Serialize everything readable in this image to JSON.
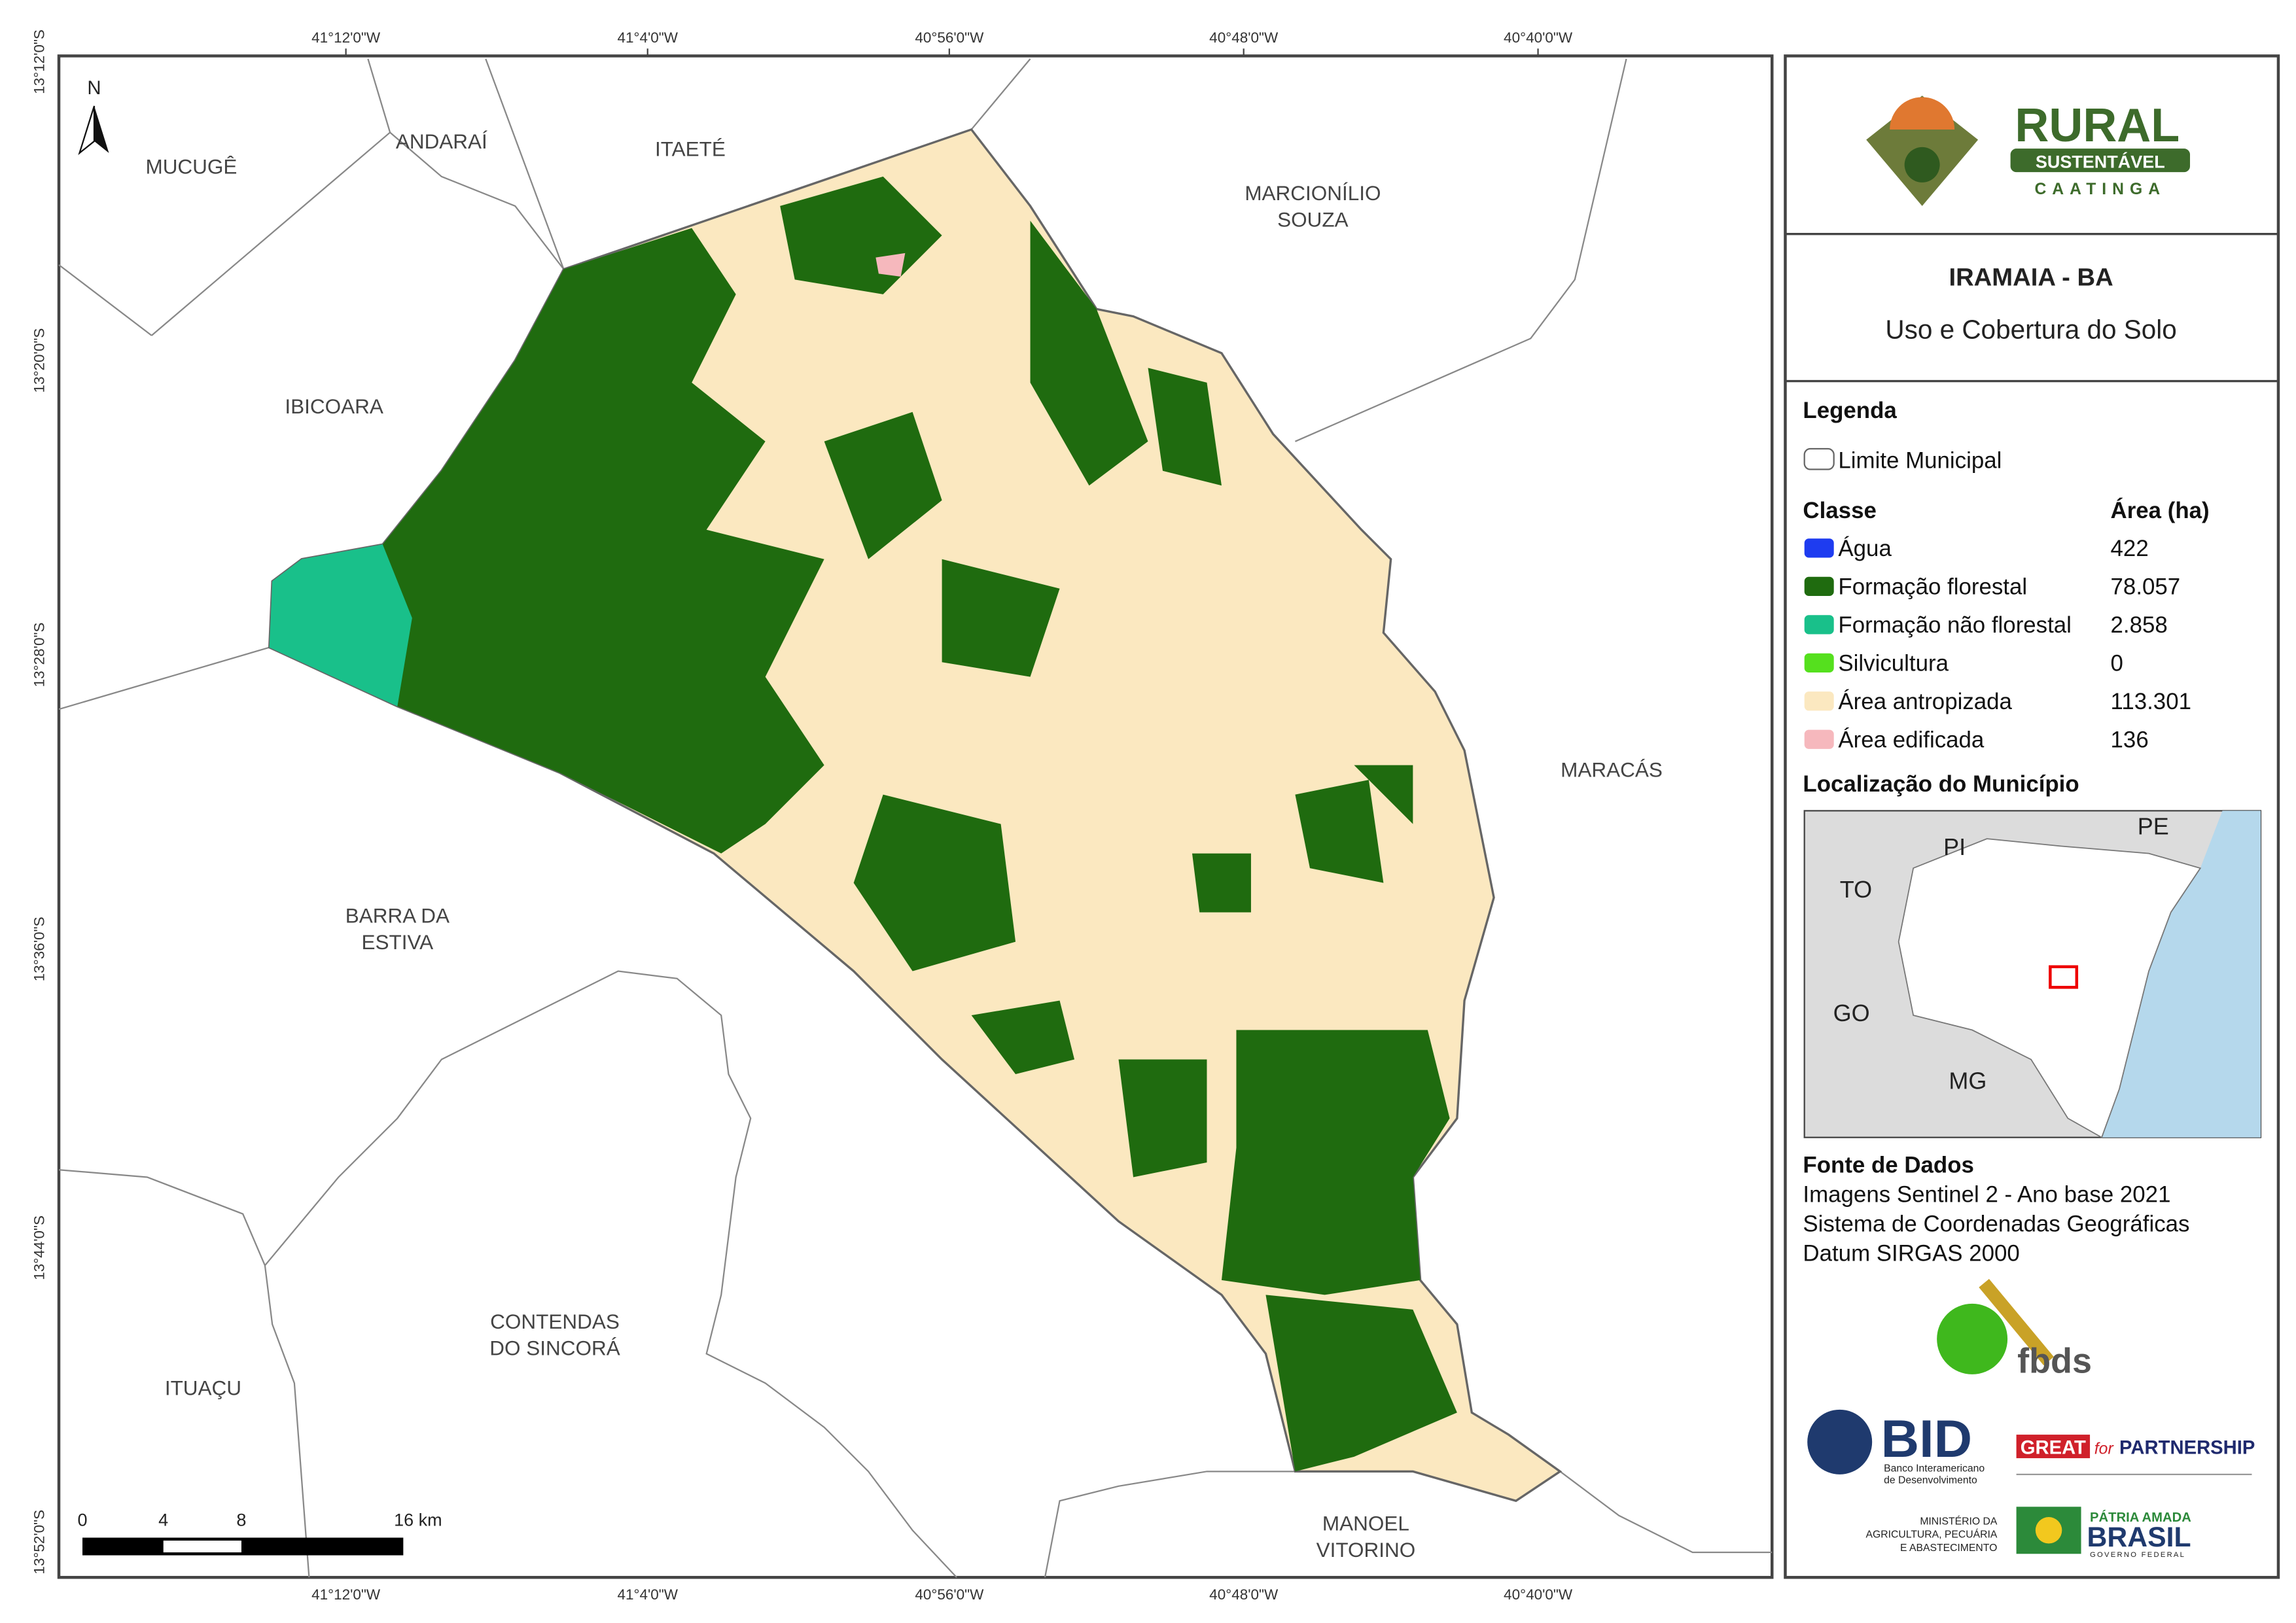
{
  "map": {
    "coordinates": {
      "longitudes": [
        "41°12'0\"W",
        "41°4'0\"W",
        "40°56'0\"W",
        "40°48'0\"W",
        "40°40'0\"W"
      ],
      "latitudes": [
        "13°12'0\"S",
        "13°20'0\"S",
        "13°28'0\"S",
        "13°36'0\"S",
        "13°44'0\"S",
        "13°52'0\"S"
      ]
    },
    "north": "N",
    "places": [
      {
        "lines": [
          "MUCUGÊ"
        ]
      },
      {
        "lines": [
          "ANDARAÍ"
        ]
      },
      {
        "lines": [
          "ITAETÉ"
        ]
      },
      {
        "lines": [
          "MARCIONÍLIO",
          "SOUZA"
        ]
      },
      {
        "lines": [
          "IBICOARA"
        ]
      },
      {
        "lines": [
          "MARACÁS"
        ]
      },
      {
        "lines": [
          "BARRA DA",
          "ESTIVA"
        ]
      },
      {
        "lines": [
          "CONTENDAS",
          "DO SINCORÁ"
        ]
      },
      {
        "lines": [
          "ITUAÇU"
        ]
      },
      {
        "lines": [
          "MANOEL",
          "VITORINO"
        ]
      }
    ],
    "scale": [
      "0",
      "4",
      "8",
      "16 km"
    ]
  },
  "header": {
    "logo": {
      "title": "RURAL",
      "subtitle": "SUSTENTÁVEL",
      "tagline": "CAATINGA"
    },
    "title": "IRAMAIA - BA",
    "subtitle": "Uso e Cobertura do Solo"
  },
  "legend": {
    "title": "Legenda",
    "boundary": "Limite Municipal",
    "class_header": "Classe",
    "area_header": "Área (ha)",
    "classes": [
      {
        "name": "Água",
        "color": "#1e3cf0",
        "area": "422"
      },
      {
        "name": "Formação florestal",
        "color": "#1f6b0f",
        "area": "78.057"
      },
      {
        "name": "Formação não florestal",
        "color": "#19c08a",
        "area": "2.858"
      },
      {
        "name": "Silvicultura",
        "color": "#55e01e",
        "area": "0"
      },
      {
        "name": "Área antropizada",
        "color": "#fbe8c0",
        "area": "113.301"
      },
      {
        "name": "Área edificada",
        "color": "#f6b8bd",
        "area": "136"
      }
    ]
  },
  "location": {
    "title": "Localização do Município",
    "states": [
      "PI",
      "PE",
      "TO",
      "GO",
      "MG"
    ]
  },
  "sources": {
    "title": "Fonte de Dados",
    "lines": [
      "Imagens Sentinel 2 - Ano base 2021",
      "Sistema de Coordenadas Geográficas",
      "Datum SIRGAS 2000"
    ]
  },
  "logos": {
    "fbds": "fbds",
    "bid": "BID",
    "bid_sub": [
      "Banco Interamericano",
      "de Desenvolvimento"
    ],
    "great": "GREAT",
    "great_for": "for",
    "partnership": "PARTNERSHIP",
    "ministry": [
      "MINISTÉRIO DA",
      "AGRICULTURA, PECUÁRIA",
      "E ABASTECIMENTO"
    ],
    "patria": "PÁTRIA AMADA",
    "brasil": "BRASIL",
    "governo": "GOVERNO FEDERAL"
  }
}
